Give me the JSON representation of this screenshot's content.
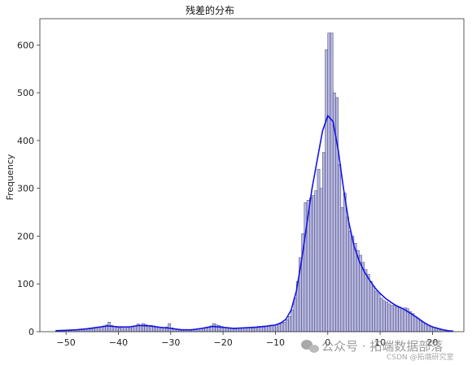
{
  "chart_data": {
    "type": "histogram",
    "title": "残差的分布",
    "xlabel": "",
    "ylabel": "Frequency",
    "xlim": [
      -55,
      26
    ],
    "ylim": [
      0,
      655
    ],
    "xticks": [
      -50,
      -40,
      -30,
      -20,
      -10,
      0,
      10,
      20
    ],
    "yticks": [
      0,
      100,
      200,
      300,
      400,
      500,
      600
    ],
    "bin_width": 0.5,
    "bins": [
      [
        -52.0,
        1
      ],
      [
        -51.5,
        1
      ],
      [
        -51.0,
        1
      ],
      [
        -50.5,
        1
      ],
      [
        -50.0,
        2
      ],
      [
        -49.5,
        2
      ],
      [
        -49.0,
        3
      ],
      [
        -48.5,
        3
      ],
      [
        -48.0,
        4
      ],
      [
        -47.5,
        4
      ],
      [
        -47.0,
        5
      ],
      [
        -46.5,
        5
      ],
      [
        -46.0,
        6
      ],
      [
        -45.5,
        6
      ],
      [
        -45.0,
        7
      ],
      [
        -44.5,
        8
      ],
      [
        -44.0,
        10
      ],
      [
        -43.5,
        10
      ],
      [
        -43.0,
        12
      ],
      [
        -42.5,
        14
      ],
      [
        -42.0,
        20
      ],
      [
        -41.5,
        13
      ],
      [
        -41.0,
        10
      ],
      [
        -40.5,
        9
      ],
      [
        -40.0,
        8
      ],
      [
        -39.5,
        9
      ],
      [
        -39.0,
        10
      ],
      [
        -38.5,
        9
      ],
      [
        -38.0,
        8
      ],
      [
        -37.5,
        10
      ],
      [
        -37.0,
        12
      ],
      [
        -36.5,
        16
      ],
      [
        -36.0,
        14
      ],
      [
        -35.5,
        17
      ],
      [
        -35.0,
        15
      ],
      [
        -34.5,
        13
      ],
      [
        -34.0,
        13
      ],
      [
        -33.5,
        12
      ],
      [
        -33.0,
        10
      ],
      [
        -32.5,
        9
      ],
      [
        -32.0,
        8
      ],
      [
        -31.5,
        8
      ],
      [
        -31.0,
        10
      ],
      [
        -30.5,
        17
      ],
      [
        -30.0,
        8
      ],
      [
        -29.5,
        6
      ],
      [
        -29.0,
        5
      ],
      [
        -28.5,
        5
      ],
      [
        -28.0,
        4
      ],
      [
        -27.5,
        4
      ],
      [
        -27.0,
        4
      ],
      [
        -26.5,
        4
      ],
      [
        -26.0,
        5
      ],
      [
        -25.5,
        5
      ],
      [
        -25.0,
        6
      ],
      [
        -24.5,
        7
      ],
      [
        -24.0,
        8
      ],
      [
        -23.5,
        9
      ],
      [
        -23.0,
        10
      ],
      [
        -22.5,
        12
      ],
      [
        -22.0,
        17
      ],
      [
        -21.5,
        14
      ],
      [
        -21.0,
        13
      ],
      [
        -20.5,
        11
      ],
      [
        -20.0,
        9
      ],
      [
        -19.5,
        8
      ],
      [
        -19.0,
        7
      ],
      [
        -18.5,
        7
      ],
      [
        -18.0,
        6
      ],
      [
        -17.5,
        7
      ],
      [
        -17.0,
        7
      ],
      [
        -16.5,
        8
      ],
      [
        -16.0,
        8
      ],
      [
        -15.5,
        9
      ],
      [
        -15.0,
        9
      ],
      [
        -14.5,
        10
      ],
      [
        -14.0,
        10
      ],
      [
        -13.5,
        11
      ],
      [
        -13.0,
        11
      ],
      [
        -12.5,
        12
      ],
      [
        -12.0,
        12
      ],
      [
        -11.5,
        13
      ],
      [
        -11.0,
        14
      ],
      [
        -10.5,
        14
      ],
      [
        -10.0,
        15
      ],
      [
        -9.5,
        16
      ],
      [
        -9.0,
        18
      ],
      [
        -8.5,
        20
      ],
      [
        -8.0,
        25
      ],
      [
        -7.5,
        32
      ],
      [
        -7.0,
        45
      ],
      [
        -6.5,
        70
      ],
      [
        -6.0,
        105
      ],
      [
        -5.5,
        155
      ],
      [
        -5.0,
        205
      ],
      [
        -4.5,
        270
      ],
      [
        -4.0,
        275
      ],
      [
        -3.5,
        280
      ],
      [
        -3.0,
        285
      ],
      [
        -2.5,
        295
      ],
      [
        -2.0,
        340
      ],
      [
        -1.5,
        300
      ],
      [
        -1.0,
        375
      ],
      [
        -0.5,
        590
      ],
      [
        0.0,
        625
      ],
      [
        0.5,
        625
      ],
      [
        1.0,
        500
      ],
      [
        1.5,
        490
      ],
      [
        2.0,
        350
      ],
      [
        2.5,
        260
      ],
      [
        3.0,
        290
      ],
      [
        3.5,
        240
      ],
      [
        4.0,
        210
      ],
      [
        4.5,
        200
      ],
      [
        5.0,
        185
      ],
      [
        5.5,
        170
      ],
      [
        6.0,
        160
      ],
      [
        6.5,
        145
      ],
      [
        7.0,
        130
      ],
      [
        7.5,
        120
      ],
      [
        8.0,
        105
      ],
      [
        8.5,
        95
      ],
      [
        9.0,
        85
      ],
      [
        9.5,
        80
      ],
      [
        10.0,
        70
      ],
      [
        10.5,
        65
      ],
      [
        11.0,
        62
      ],
      [
        11.5,
        58
      ],
      [
        12.0,
        55
      ],
      [
        12.5,
        55
      ],
      [
        13.0,
        52
      ],
      [
        13.5,
        50
      ],
      [
        14.0,
        48
      ],
      [
        14.5,
        50
      ],
      [
        15.0,
        48
      ],
      [
        15.5,
        42
      ],
      [
        16.0,
        38
      ],
      [
        16.5,
        32
      ],
      [
        17.0,
        28
      ],
      [
        17.5,
        24
      ],
      [
        18.0,
        20
      ],
      [
        18.5,
        17
      ],
      [
        19.0,
        14
      ],
      [
        19.5,
        11
      ],
      [
        20.0,
        9
      ],
      [
        20.5,
        7
      ],
      [
        21.0,
        5
      ],
      [
        21.5,
        4
      ],
      [
        22.0,
        3
      ],
      [
        22.5,
        2
      ],
      [
        23.0,
        1
      ]
    ],
    "kde": [
      [
        -52,
        2
      ],
      [
        -50,
        3
      ],
      [
        -48,
        4
      ],
      [
        -46,
        6
      ],
      [
        -44,
        9
      ],
      [
        -42,
        12
      ],
      [
        -40,
        10
      ],
      [
        -38,
        10
      ],
      [
        -36,
        13
      ],
      [
        -34,
        12
      ],
      [
        -32,
        9
      ],
      [
        -30,
        7
      ],
      [
        -28,
        4
      ],
      [
        -26,
        4
      ],
      [
        -24,
        7
      ],
      [
        -22,
        11
      ],
      [
        -20,
        9
      ],
      [
        -18,
        7
      ],
      [
        -16,
        8
      ],
      [
        -14,
        9
      ],
      [
        -12,
        11
      ],
      [
        -10,
        14
      ],
      [
        -9,
        18
      ],
      [
        -8,
        26
      ],
      [
        -7,
        45
      ],
      [
        -6,
        85
      ],
      [
        -5,
        150
      ],
      [
        -4,
        225
      ],
      [
        -3,
        300
      ],
      [
        -2,
        360
      ],
      [
        -1,
        420
      ],
      [
        0,
        452
      ],
      [
        1,
        440
      ],
      [
        2,
        380
      ],
      [
        3,
        300
      ],
      [
        4,
        230
      ],
      [
        5,
        180
      ],
      [
        6,
        148
      ],
      [
        7,
        125
      ],
      [
        8,
        108
      ],
      [
        9,
        92
      ],
      [
        10,
        80
      ],
      [
        11,
        70
      ],
      [
        12,
        62
      ],
      [
        13,
        55
      ],
      [
        14,
        50
      ],
      [
        15,
        44
      ],
      [
        16,
        37
      ],
      [
        17,
        30
      ],
      [
        18,
        22
      ],
      [
        19,
        15
      ],
      [
        20,
        10
      ],
      [
        21,
        7
      ],
      [
        22,
        4
      ],
      [
        23,
        2
      ],
      [
        24,
        1
      ]
    ],
    "bar_fill": "#b8b8dc",
    "bar_edge": "#3c3c80",
    "kde_color": "#1414e6",
    "grid": false,
    "legend": "none"
  },
  "watermark": {
    "brand": "公众号 · 拓端数据部落",
    "source": "CSDN @拓端研究室"
  }
}
